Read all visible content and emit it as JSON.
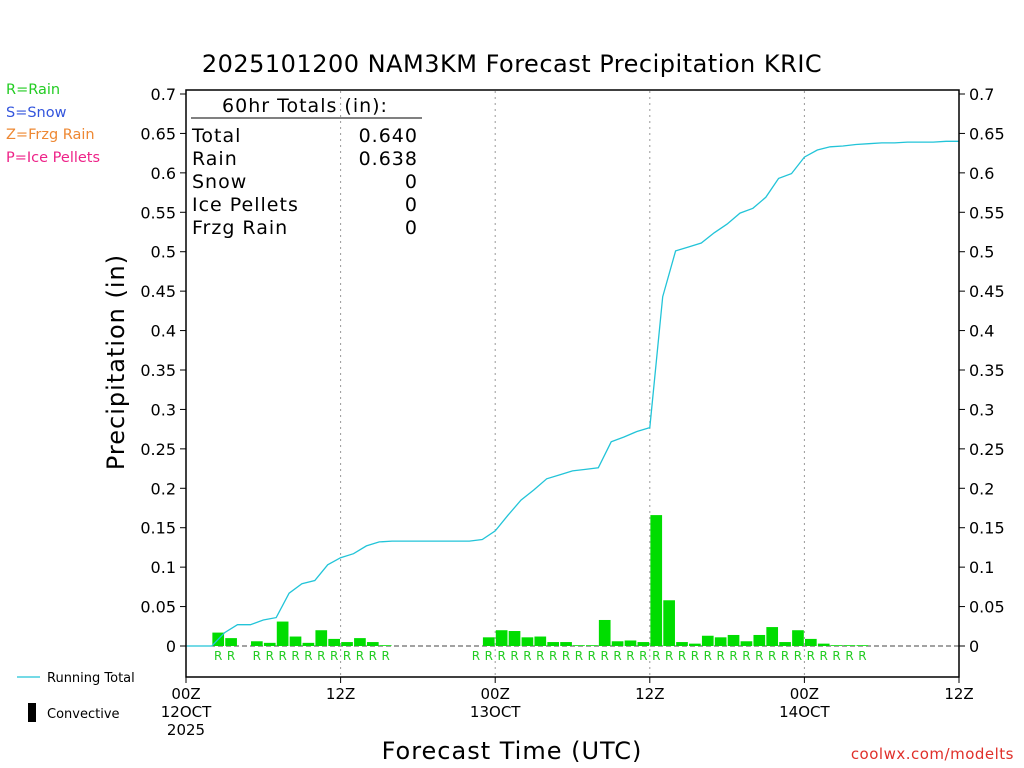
{
  "chart_data": {
    "type": "bar+line",
    "title": "2025101200 NAM3KM Forecast Precipitation KRIC",
    "xlabel": "Forecast Time (UTC)",
    "ylabel": "Precipitation (in)",
    "ylim": [
      0,
      0.7
    ],
    "xlim_hours": [
      0,
      60
    ],
    "y_ticks": [
      0,
      0.05,
      0.1,
      0.15,
      0.2,
      0.25,
      0.3,
      0.35,
      0.4,
      0.45,
      0.5,
      0.55,
      0.6,
      0.65,
      0.7
    ],
    "y_tick_labels": [
      "0",
      "0.05",
      "0.1",
      "0.15",
      "0.2",
      "0.25",
      "0.3",
      "0.35",
      "0.4",
      "0.45",
      "0.5",
      "0.55",
      "0.6",
      "0.65",
      "0.7"
    ],
    "x_ticks": [
      {
        "hour": 0,
        "lines": [
          "00Z",
          "12OCT",
          "2025"
        ]
      },
      {
        "hour": 12,
        "lines": [
          "12Z"
        ]
      },
      {
        "hour": 24,
        "lines": [
          "00Z",
          "13OCT"
        ]
      },
      {
        "hour": 36,
        "lines": [
          "12Z"
        ]
      },
      {
        "hour": 48,
        "lines": [
          "00Z",
          "14OCT"
        ]
      },
      {
        "hour": 60,
        "lines": [
          "12Z"
        ]
      }
    ],
    "gridline_hours": [
      12,
      24,
      36,
      48
    ],
    "bar_color": "#00dd00",
    "line_color": "#22c4d8",
    "hourly_precip": [
      {
        "h": 3,
        "v": 0.017
      },
      {
        "h": 4,
        "v": 0.01
      },
      {
        "h": 6,
        "v": 0.006
      },
      {
        "h": 7,
        "v": 0.004
      },
      {
        "h": 8,
        "v": 0.031
      },
      {
        "h": 9,
        "v": 0.012
      },
      {
        "h": 10,
        "v": 0.004
      },
      {
        "h": 11,
        "v": 0.02
      },
      {
        "h": 12,
        "v": 0.009
      },
      {
        "h": 13,
        "v": 0.005
      },
      {
        "h": 14,
        "v": 0.01
      },
      {
        "h": 15,
        "v": 0.005
      },
      {
        "h": 16,
        "v": 0.001
      },
      {
        "h": 24,
        "v": 0.011
      },
      {
        "h": 25,
        "v": 0.02
      },
      {
        "h": 26,
        "v": 0.019
      },
      {
        "h": 27,
        "v": 0.011
      },
      {
        "h": 28,
        "v": 0.012
      },
      {
        "h": 29,
        "v": 0.005
      },
      {
        "h": 30,
        "v": 0.005
      },
      {
        "h": 31,
        "v": 0.001
      },
      {
        "h": 32,
        "v": 0.001
      },
      {
        "h": 33,
        "v": 0.033
      },
      {
        "h": 34,
        "v": 0.006
      },
      {
        "h": 35,
        "v": 0.007
      },
      {
        "h": 36,
        "v": 0.005
      },
      {
        "h": 37,
        "v": 0.166
      },
      {
        "h": 38,
        "v": 0.058
      },
      {
        "h": 39,
        "v": 0.005
      },
      {
        "h": 40,
        "v": 0.003
      },
      {
        "h": 41,
        "v": 0.013
      },
      {
        "h": 42,
        "v": 0.011
      },
      {
        "h": 43,
        "v": 0.014
      },
      {
        "h": 44,
        "v": 0.006
      },
      {
        "h": 45,
        "v": 0.014
      },
      {
        "h": 46,
        "v": 0.024
      },
      {
        "h": 47,
        "v": 0.005
      },
      {
        "h": 48,
        "v": 0.02
      },
      {
        "h": 49,
        "v": 0.009
      },
      {
        "h": 50,
        "v": 0.003
      },
      {
        "h": 51,
        "v": 0.001
      },
      {
        "h": 52,
        "v": 0.001
      },
      {
        "h": 53,
        "v": 0.001
      }
    ],
    "running_total": [
      {
        "h": 0,
        "v": 0
      },
      {
        "h": 1,
        "v": 0
      },
      {
        "h": 2,
        "v": 0
      },
      {
        "h": 3,
        "v": 0.017
      },
      {
        "h": 4,
        "v": 0.027
      },
      {
        "h": 5,
        "v": 0.027
      },
      {
        "h": 6,
        "v": 0.033
      },
      {
        "h": 7,
        "v": 0.036
      },
      {
        "h": 8,
        "v": 0.067
      },
      {
        "h": 9,
        "v": 0.079
      },
      {
        "h": 10,
        "v": 0.083
      },
      {
        "h": 11,
        "v": 0.103
      },
      {
        "h": 12,
        "v": 0.112
      },
      {
        "h": 13,
        "v": 0.117
      },
      {
        "h": 14,
        "v": 0.127
      },
      {
        "h": 15,
        "v": 0.132
      },
      {
        "h": 16,
        "v": 0.133
      },
      {
        "h": 17,
        "v": 0.133
      },
      {
        "h": 18,
        "v": 0.133
      },
      {
        "h": 19,
        "v": 0.133
      },
      {
        "h": 20,
        "v": 0.133
      },
      {
        "h": 21,
        "v": 0.133
      },
      {
        "h": 22,
        "v": 0.133
      },
      {
        "h": 23,
        "v": 0.135
      },
      {
        "h": 24,
        "v": 0.146
      },
      {
        "h": 25,
        "v": 0.166
      },
      {
        "h": 26,
        "v": 0.185
      },
      {
        "h": 27,
        "v": 0.198
      },
      {
        "h": 28,
        "v": 0.212
      },
      {
        "h": 29,
        "v": 0.217
      },
      {
        "h": 30,
        "v": 0.222
      },
      {
        "h": 31,
        "v": 0.224
      },
      {
        "h": 32,
        "v": 0.226
      },
      {
        "h": 33,
        "v": 0.259
      },
      {
        "h": 34,
        "v": 0.265
      },
      {
        "h": 35,
        "v": 0.272
      },
      {
        "h": 36,
        "v": 0.277
      },
      {
        "h": 37,
        "v": 0.443
      },
      {
        "h": 38,
        "v": 0.501
      },
      {
        "h": 39,
        "v": 0.506
      },
      {
        "h": 40,
        "v": 0.511
      },
      {
        "h": 41,
        "v": 0.524
      },
      {
        "h": 42,
        "v": 0.535
      },
      {
        "h": 43,
        "v": 0.549
      },
      {
        "h": 44,
        "v": 0.555
      },
      {
        "h": 45,
        "v": 0.569
      },
      {
        "h": 46,
        "v": 0.593
      },
      {
        "h": 47,
        "v": 0.599
      },
      {
        "h": 48,
        "v": 0.62
      },
      {
        "h": 49,
        "v": 0.629
      },
      {
        "h": 50,
        "v": 0.633
      },
      {
        "h": 51,
        "v": 0.634
      },
      {
        "h": 52,
        "v": 0.636
      },
      {
        "h": 53,
        "v": 0.637
      },
      {
        "h": 54,
        "v": 0.638
      },
      {
        "h": 55,
        "v": 0.638
      },
      {
        "h": 56,
        "v": 0.639
      },
      {
        "h": 57,
        "v": 0.639
      },
      {
        "h": 58,
        "v": 0.639
      },
      {
        "h": 59,
        "v": 0.64
      },
      {
        "h": 60,
        "v": 0.64
      }
    ],
    "precip_type_labels": [
      {
        "h": 3,
        "t": "R"
      },
      {
        "h": 4,
        "t": "R"
      },
      {
        "h": 6,
        "t": "R"
      },
      {
        "h": 7,
        "t": "R"
      },
      {
        "h": 8,
        "t": "R"
      },
      {
        "h": 9,
        "t": "R"
      },
      {
        "h": 10,
        "t": "R"
      },
      {
        "h": 11,
        "t": "R"
      },
      {
        "h": 12,
        "t": "R"
      },
      {
        "h": 13,
        "t": "R"
      },
      {
        "h": 14,
        "t": "R"
      },
      {
        "h": 15,
        "t": "R"
      },
      {
        "h": 16,
        "t": "R"
      },
      {
        "h": 23,
        "t": "R"
      },
      {
        "h": 24,
        "t": "R"
      },
      {
        "h": 25,
        "t": "R"
      },
      {
        "h": 26,
        "t": "R"
      },
      {
        "h": 27,
        "t": "R"
      },
      {
        "h": 28,
        "t": "R"
      },
      {
        "h": 29,
        "t": "R"
      },
      {
        "h": 30,
        "t": "R"
      },
      {
        "h": 31,
        "t": "R"
      },
      {
        "h": 32,
        "t": "R"
      },
      {
        "h": 33,
        "t": "R"
      },
      {
        "h": 34,
        "t": "R"
      },
      {
        "h": 35,
        "t": "R"
      },
      {
        "h": 36,
        "t": "R"
      },
      {
        "h": 37,
        "t": "R"
      },
      {
        "h": 38,
        "t": "R"
      },
      {
        "h": 39,
        "t": "R"
      },
      {
        "h": 40,
        "t": "R"
      },
      {
        "h": 41,
        "t": "R"
      },
      {
        "h": 42,
        "t": "R"
      },
      {
        "h": 43,
        "t": "R"
      },
      {
        "h": 44,
        "t": "R"
      },
      {
        "h": 45,
        "t": "R"
      },
      {
        "h": 46,
        "t": "R"
      },
      {
        "h": 47,
        "t": "R"
      },
      {
        "h": 48,
        "t": "R"
      },
      {
        "h": 49,
        "t": "R"
      },
      {
        "h": 50,
        "t": "R"
      },
      {
        "h": 51,
        "t": "R"
      },
      {
        "h": 52,
        "t": "R"
      },
      {
        "h": 53,
        "t": "R"
      }
    ],
    "totals_box": {
      "header": "60hr Totals (in):",
      "rows": [
        {
          "label": "Total",
          "value": "0.640"
        },
        {
          "label": "Rain",
          "value": "0.638"
        },
        {
          "label": "Snow",
          "value": "0"
        },
        {
          "label": "Ice Pellets",
          "value": "0"
        },
        {
          "label": "Frzg Rain",
          "value": "0"
        }
      ]
    }
  },
  "type_legend": [
    {
      "text": "R=Rain",
      "color": "#22cc22"
    },
    {
      "text": "S=Snow",
      "color": "#3355dd"
    },
    {
      "text": "Z=Frzg Rain",
      "color": "#ee8833"
    },
    {
      "text": "P=Ice Pellets",
      "color": "#ee2288"
    }
  ],
  "series_legend": {
    "running_total": "Running Total",
    "convective": "Convective"
  },
  "footer": {
    "url": "coolwx.com/modelts"
  }
}
